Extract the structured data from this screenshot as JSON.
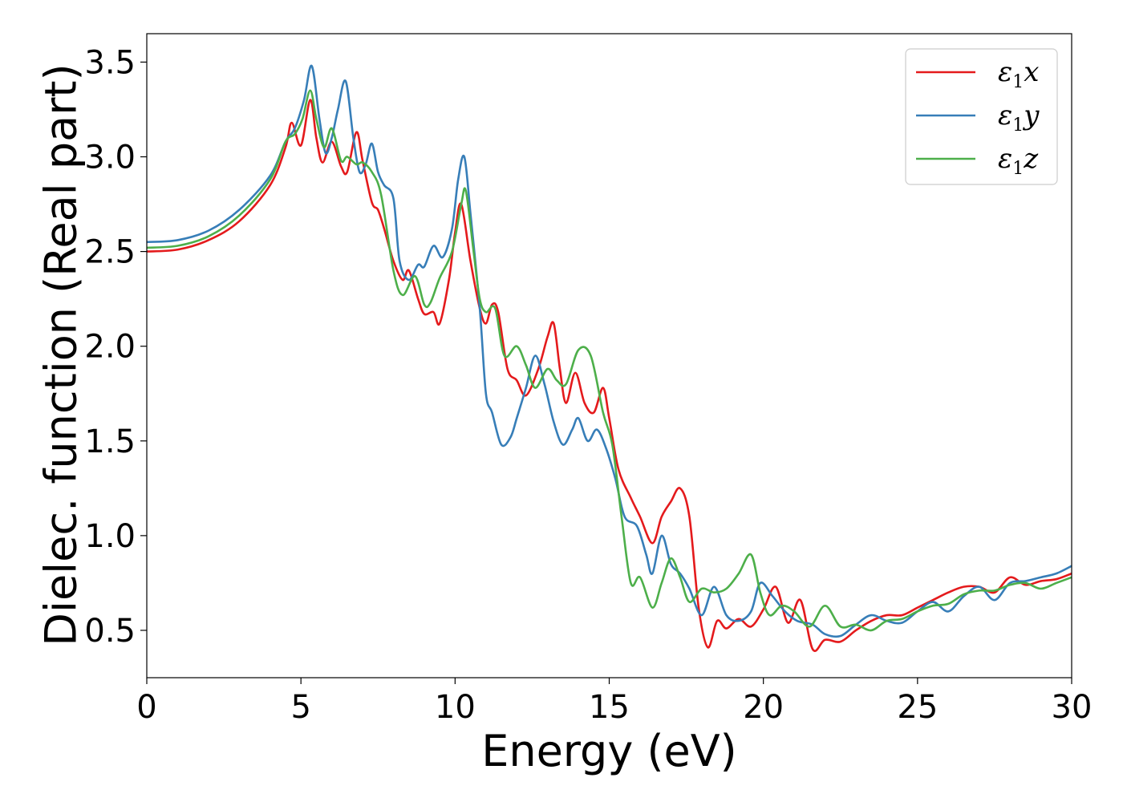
{
  "chart_data": {
    "type": "line",
    "xlabel": "Energy (eV)",
    "ylabel": "Dielec. function (Real part)",
    "xlim": [
      0,
      30
    ],
    "ylim": [
      0.25,
      3.65
    ],
    "xticks": [
      0,
      5,
      10,
      15,
      20,
      25,
      30
    ],
    "xtick_labels": [
      "0",
      "5",
      "10",
      "15",
      "20",
      "25",
      "30"
    ],
    "yticks": [
      0.5,
      1.0,
      1.5,
      2.0,
      2.5,
      3.0,
      3.5
    ],
    "ytick_labels": [
      "0.5",
      "1.0",
      "1.5",
      "2.0",
      "2.5",
      "3.0",
      "3.5"
    ],
    "grid": false,
    "legend_position": "top-right",
    "series": [
      {
        "name": "ε1x",
        "base": "ε",
        "sub": "1",
        "axis": "x",
        "color": "#e41a1c",
        "points": [
          [
            0,
            2.5
          ],
          [
            1,
            2.51
          ],
          [
            2,
            2.56
          ],
          [
            3,
            2.66
          ],
          [
            4,
            2.85
          ],
          [
            4.5,
            3.05
          ],
          [
            4.7,
            3.18
          ],
          [
            5.0,
            3.06
          ],
          [
            5.3,
            3.3
          ],
          [
            5.5,
            3.1
          ],
          [
            5.7,
            2.97
          ],
          [
            6.0,
            3.08
          ],
          [
            6.3,
            2.95
          ],
          [
            6.5,
            2.92
          ],
          [
            6.8,
            3.13
          ],
          [
            7.0,
            2.98
          ],
          [
            7.3,
            2.76
          ],
          [
            7.5,
            2.72
          ],
          [
            7.7,
            2.62
          ],
          [
            8.0,
            2.45
          ],
          [
            8.3,
            2.35
          ],
          [
            8.5,
            2.4
          ],
          [
            8.8,
            2.25
          ],
          [
            9.0,
            2.17
          ],
          [
            9.3,
            2.18
          ],
          [
            9.5,
            2.12
          ],
          [
            9.8,
            2.35
          ],
          [
            10.0,
            2.6
          ],
          [
            10.2,
            2.75
          ],
          [
            10.5,
            2.45
          ],
          [
            10.8,
            2.2
          ],
          [
            11.0,
            2.12
          ],
          [
            11.2,
            2.22
          ],
          [
            11.4,
            2.18
          ],
          [
            11.7,
            1.88
          ],
          [
            12.0,
            1.82
          ],
          [
            12.3,
            1.74
          ],
          [
            12.7,
            1.88
          ],
          [
            13.0,
            2.05
          ],
          [
            13.2,
            2.12
          ],
          [
            13.4,
            1.88
          ],
          [
            13.6,
            1.7
          ],
          [
            13.9,
            1.86
          ],
          [
            14.2,
            1.7
          ],
          [
            14.5,
            1.65
          ],
          [
            14.8,
            1.78
          ],
          [
            15.0,
            1.62
          ],
          [
            15.3,
            1.35
          ],
          [
            15.7,
            1.2
          ],
          [
            16.0,
            1.1
          ],
          [
            16.4,
            0.96
          ],
          [
            16.7,
            1.1
          ],
          [
            17.0,
            1.18
          ],
          [
            17.3,
            1.25
          ],
          [
            17.6,
            1.1
          ],
          [
            17.9,
            0.62
          ],
          [
            18.2,
            0.41
          ],
          [
            18.5,
            0.55
          ],
          [
            18.8,
            0.51
          ],
          [
            19.2,
            0.56
          ],
          [
            19.6,
            0.52
          ],
          [
            20.0,
            0.61
          ],
          [
            20.4,
            0.73
          ],
          [
            20.8,
            0.54
          ],
          [
            21.2,
            0.66
          ],
          [
            21.6,
            0.4
          ],
          [
            22.0,
            0.45
          ],
          [
            22.5,
            0.44
          ],
          [
            23.0,
            0.5
          ],
          [
            23.5,
            0.55
          ],
          [
            24.0,
            0.58
          ],
          [
            24.5,
            0.58
          ],
          [
            25.0,
            0.62
          ],
          [
            25.5,
            0.66
          ],
          [
            26.0,
            0.7
          ],
          [
            26.5,
            0.73
          ],
          [
            27.0,
            0.73
          ],
          [
            27.5,
            0.7
          ],
          [
            28.0,
            0.78
          ],
          [
            28.5,
            0.74
          ],
          [
            29.0,
            0.76
          ],
          [
            29.5,
            0.77
          ],
          [
            30.0,
            0.8
          ]
        ]
      },
      {
        "name": "ε1y",
        "base": "ε",
        "sub": "1",
        "axis": "y",
        "color": "#377eb8",
        "points": [
          [
            0,
            2.55
          ],
          [
            1,
            2.56
          ],
          [
            2,
            2.61
          ],
          [
            3,
            2.72
          ],
          [
            4,
            2.9
          ],
          [
            4.5,
            3.08
          ],
          [
            4.8,
            3.15
          ],
          [
            5.1,
            3.3
          ],
          [
            5.35,
            3.48
          ],
          [
            5.6,
            3.2
          ],
          [
            5.8,
            3.02
          ],
          [
            6.0,
            3.1
          ],
          [
            6.2,
            3.25
          ],
          [
            6.45,
            3.4
          ],
          [
            6.7,
            3.1
          ],
          [
            6.9,
            2.92
          ],
          [
            7.1,
            2.96
          ],
          [
            7.3,
            3.07
          ],
          [
            7.5,
            2.92
          ],
          [
            7.7,
            2.85
          ],
          [
            8.0,
            2.78
          ],
          [
            8.2,
            2.45
          ],
          [
            8.5,
            2.35
          ],
          [
            8.8,
            2.43
          ],
          [
            9.0,
            2.42
          ],
          [
            9.3,
            2.53
          ],
          [
            9.6,
            2.47
          ],
          [
            9.9,
            2.62
          ],
          [
            10.1,
            2.88
          ],
          [
            10.3,
            3.0
          ],
          [
            10.5,
            2.7
          ],
          [
            10.8,
            2.2
          ],
          [
            11.0,
            1.75
          ],
          [
            11.2,
            1.65
          ],
          [
            11.5,
            1.48
          ],
          [
            11.8,
            1.52
          ],
          [
            12.0,
            1.62
          ],
          [
            12.3,
            1.78
          ],
          [
            12.6,
            1.95
          ],
          [
            12.9,
            1.8
          ],
          [
            13.2,
            1.6
          ],
          [
            13.5,
            1.48
          ],
          [
            13.8,
            1.56
          ],
          [
            14.0,
            1.62
          ],
          [
            14.3,
            1.5
          ],
          [
            14.6,
            1.56
          ],
          [
            14.9,
            1.46
          ],
          [
            15.2,
            1.3
          ],
          [
            15.5,
            1.1
          ],
          [
            15.9,
            1.05
          ],
          [
            16.2,
            0.9
          ],
          [
            16.4,
            0.8
          ],
          [
            16.7,
            1.0
          ],
          [
            17.0,
            0.85
          ],
          [
            17.3,
            0.8
          ],
          [
            17.6,
            0.72
          ],
          [
            18.0,
            0.58
          ],
          [
            18.4,
            0.73
          ],
          [
            18.8,
            0.58
          ],
          [
            19.2,
            0.55
          ],
          [
            19.6,
            0.6
          ],
          [
            19.9,
            0.75
          ],
          [
            20.3,
            0.68
          ],
          [
            20.7,
            0.6
          ],
          [
            21.1,
            0.55
          ],
          [
            21.6,
            0.53
          ],
          [
            22.0,
            0.48
          ],
          [
            22.5,
            0.47
          ],
          [
            23.0,
            0.53
          ],
          [
            23.5,
            0.58
          ],
          [
            24.0,
            0.55
          ],
          [
            24.5,
            0.54
          ],
          [
            25.0,
            0.6
          ],
          [
            25.5,
            0.65
          ],
          [
            26.0,
            0.6
          ],
          [
            26.5,
            0.68
          ],
          [
            27.0,
            0.73
          ],
          [
            27.5,
            0.66
          ],
          [
            28.0,
            0.75
          ],
          [
            28.5,
            0.76
          ],
          [
            29.0,
            0.78
          ],
          [
            29.5,
            0.8
          ],
          [
            30.0,
            0.84
          ]
        ]
      },
      {
        "name": "ε1z",
        "base": "ε",
        "sub": "1",
        "axis": "z",
        "color": "#4daf4a",
        "points": [
          [
            0,
            2.52
          ],
          [
            1,
            2.53
          ],
          [
            2,
            2.58
          ],
          [
            3,
            2.69
          ],
          [
            4,
            2.88
          ],
          [
            4.5,
            3.08
          ],
          [
            4.8,
            3.12
          ],
          [
            5.05,
            3.2
          ],
          [
            5.3,
            3.35
          ],
          [
            5.5,
            3.2
          ],
          [
            5.75,
            3.05
          ],
          [
            6.0,
            3.15
          ],
          [
            6.3,
            2.98
          ],
          [
            6.5,
            3.0
          ],
          [
            6.8,
            2.96
          ],
          [
            7.0,
            2.97
          ],
          [
            7.3,
            2.92
          ],
          [
            7.6,
            2.8
          ],
          [
            8.0,
            2.4
          ],
          [
            8.3,
            2.27
          ],
          [
            8.7,
            2.37
          ],
          [
            9.0,
            2.22
          ],
          [
            9.2,
            2.23
          ],
          [
            9.5,
            2.36
          ],
          [
            9.9,
            2.5
          ],
          [
            10.2,
            2.75
          ],
          [
            10.35,
            2.82
          ],
          [
            10.6,
            2.5
          ],
          [
            10.8,
            2.25
          ],
          [
            11.0,
            2.18
          ],
          [
            11.3,
            2.2
          ],
          [
            11.6,
            1.95
          ],
          [
            12.0,
            2.0
          ],
          [
            12.3,
            1.9
          ],
          [
            12.6,
            1.78
          ],
          [
            13.0,
            1.88
          ],
          [
            13.3,
            1.82
          ],
          [
            13.6,
            1.8
          ],
          [
            14.0,
            1.98
          ],
          [
            14.4,
            1.95
          ],
          [
            14.8,
            1.65
          ],
          [
            15.1,
            1.48
          ],
          [
            15.4,
            1.1
          ],
          [
            15.7,
            0.75
          ],
          [
            16.0,
            0.78
          ],
          [
            16.4,
            0.62
          ],
          [
            16.7,
            0.75
          ],
          [
            17.0,
            0.88
          ],
          [
            17.3,
            0.78
          ],
          [
            17.6,
            0.65
          ],
          [
            18.0,
            0.72
          ],
          [
            18.4,
            0.7
          ],
          [
            18.8,
            0.72
          ],
          [
            19.2,
            0.8
          ],
          [
            19.6,
            0.9
          ],
          [
            19.9,
            0.7
          ],
          [
            20.2,
            0.58
          ],
          [
            20.6,
            0.63
          ],
          [
            21.0,
            0.6
          ],
          [
            21.5,
            0.52
          ],
          [
            22.0,
            0.63
          ],
          [
            22.5,
            0.52
          ],
          [
            23.0,
            0.53
          ],
          [
            23.5,
            0.5
          ],
          [
            24.0,
            0.55
          ],
          [
            24.5,
            0.56
          ],
          [
            25.0,
            0.6
          ],
          [
            25.5,
            0.63
          ],
          [
            26.0,
            0.64
          ],
          [
            26.5,
            0.69
          ],
          [
            27.0,
            0.71
          ],
          [
            27.5,
            0.71
          ],
          [
            28.0,
            0.74
          ],
          [
            28.5,
            0.75
          ],
          [
            29.0,
            0.72
          ],
          [
            29.5,
            0.75
          ],
          [
            30.0,
            0.78
          ]
        ]
      }
    ]
  }
}
